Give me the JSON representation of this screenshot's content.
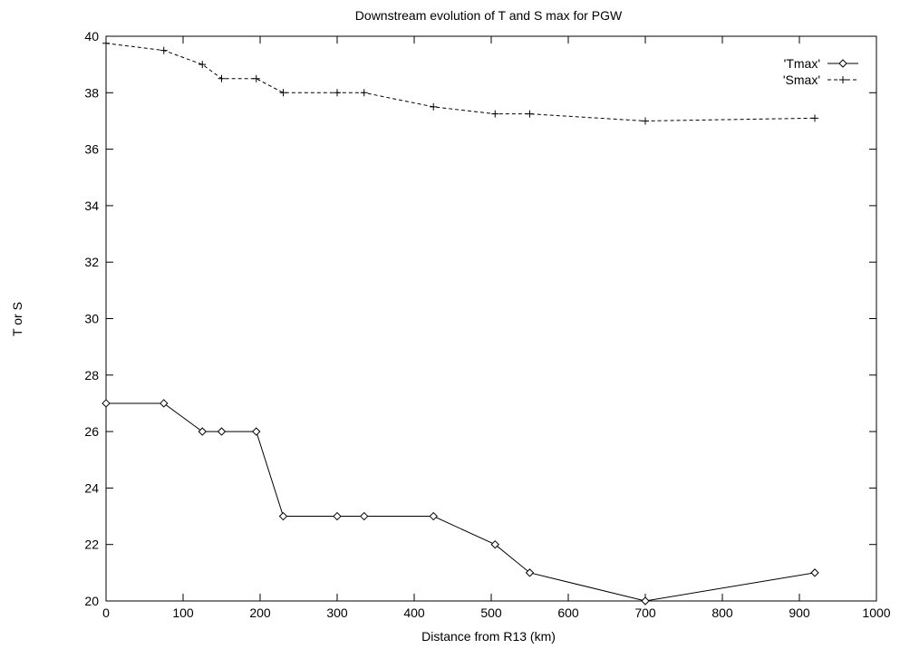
{
  "chart_data": {
    "type": "line",
    "title": "Downstream evolution of T and S max for PGW",
    "xlabel": "Distance from R13 (km)",
    "ylabel": "T or S",
    "xlim": [
      0,
      1000
    ],
    "ylim": [
      20,
      40
    ],
    "x_ticks": [
      0,
      100,
      200,
      300,
      400,
      500,
      600,
      700,
      800,
      900,
      1000
    ],
    "y_ticks": [
      20,
      22,
      24,
      26,
      28,
      30,
      32,
      34,
      36,
      38,
      40
    ],
    "grid": false,
    "legend_position": "top-right",
    "series": [
      {
        "name": "'Tmax'",
        "line_style": "solid",
        "marker": "diamond",
        "color": "#000000",
        "x": [
          0,
          75,
          125,
          150,
          195,
          230,
          300,
          335,
          425,
          505,
          550,
          700,
          920
        ],
        "values": [
          27,
          27,
          26,
          26,
          26,
          23,
          23,
          23,
          23,
          22,
          21,
          20,
          21
        ]
      },
      {
        "name": "'Smax'",
        "line_style": "dashed",
        "marker": "plus",
        "color": "#000000",
        "x": [
          0,
          75,
          125,
          150,
          195,
          230,
          300,
          335,
          425,
          505,
          550,
          700,
          920
        ],
        "values": [
          39.75,
          39.5,
          39,
          38.5,
          38.5,
          38,
          38,
          38,
          37.5,
          37.25,
          37.25,
          37,
          37.1
        ]
      }
    ]
  }
}
